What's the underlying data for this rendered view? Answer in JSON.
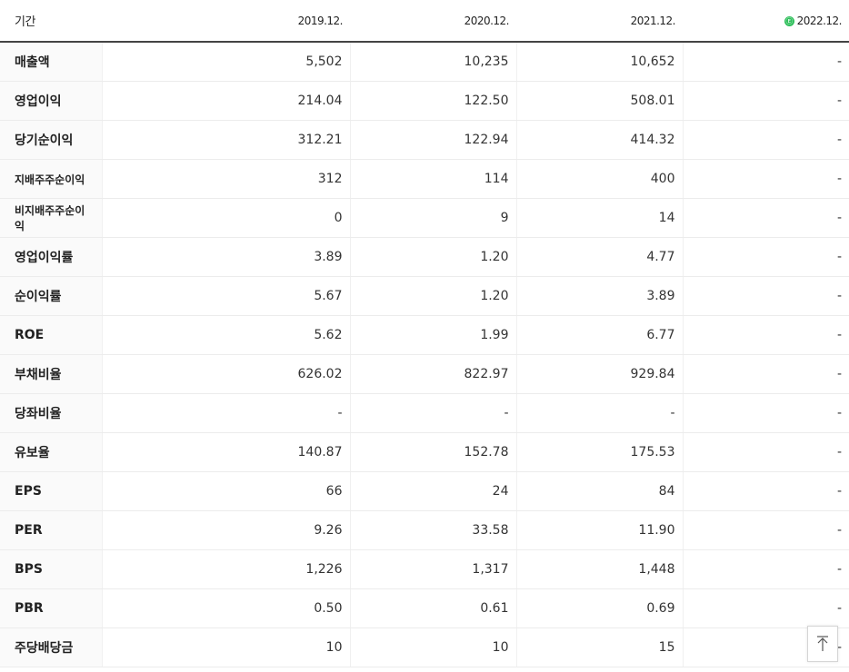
{
  "header": {
    "period_label": "기간",
    "years": [
      "2019.12.",
      "2020.12.",
      "2021.12.",
      "2022.12."
    ],
    "estimate_icon": "Ⓔ"
  },
  "rows": [
    {
      "label": "매출액",
      "values": [
        "5,502",
        "10,235",
        "10,652",
        "-"
      ]
    },
    {
      "label": "영업이익",
      "values": [
        "214.04",
        "122.50",
        "508.01",
        "-"
      ]
    },
    {
      "label": "당기순이익",
      "values": [
        "312.21",
        "122.94",
        "414.32",
        "-"
      ]
    },
    {
      "label": "지배주주순이익",
      "values": [
        "312",
        "114",
        "400",
        "-"
      ]
    },
    {
      "label": "비지배주주순이익",
      "values": [
        "0",
        "9",
        "14",
        "-"
      ]
    },
    {
      "label": "영업이익률",
      "values": [
        "3.89",
        "1.20",
        "4.77",
        "-"
      ]
    },
    {
      "label": "순이익률",
      "values": [
        "5.67",
        "1.20",
        "3.89",
        "-"
      ]
    },
    {
      "label": "ROE",
      "values": [
        "5.62",
        "1.99",
        "6.77",
        "-"
      ]
    },
    {
      "label": "부채비율",
      "values": [
        "626.02",
        "822.97",
        "929.84",
        "-"
      ]
    },
    {
      "label": "당좌비율",
      "values": [
        "-",
        "-",
        "-",
        "-"
      ]
    },
    {
      "label": "유보율",
      "values": [
        "140.87",
        "152.78",
        "175.53",
        "-"
      ]
    },
    {
      "label": "EPS",
      "values": [
        "66",
        "24",
        "84",
        "-"
      ]
    },
    {
      "label": "PER",
      "values": [
        "9.26",
        "33.58",
        "11.90",
        "-"
      ]
    },
    {
      "label": "BPS",
      "values": [
        "1,226",
        "1,317",
        "1,448",
        "-"
      ]
    },
    {
      "label": "PBR",
      "values": [
        "0.50",
        "0.61",
        "0.69",
        "-"
      ]
    },
    {
      "label": "주당배당금",
      "values": [
        "10",
        "10",
        "15",
        "-"
      ]
    }
  ],
  "scroll_top_icon": "arrow-up-to-top-icon"
}
